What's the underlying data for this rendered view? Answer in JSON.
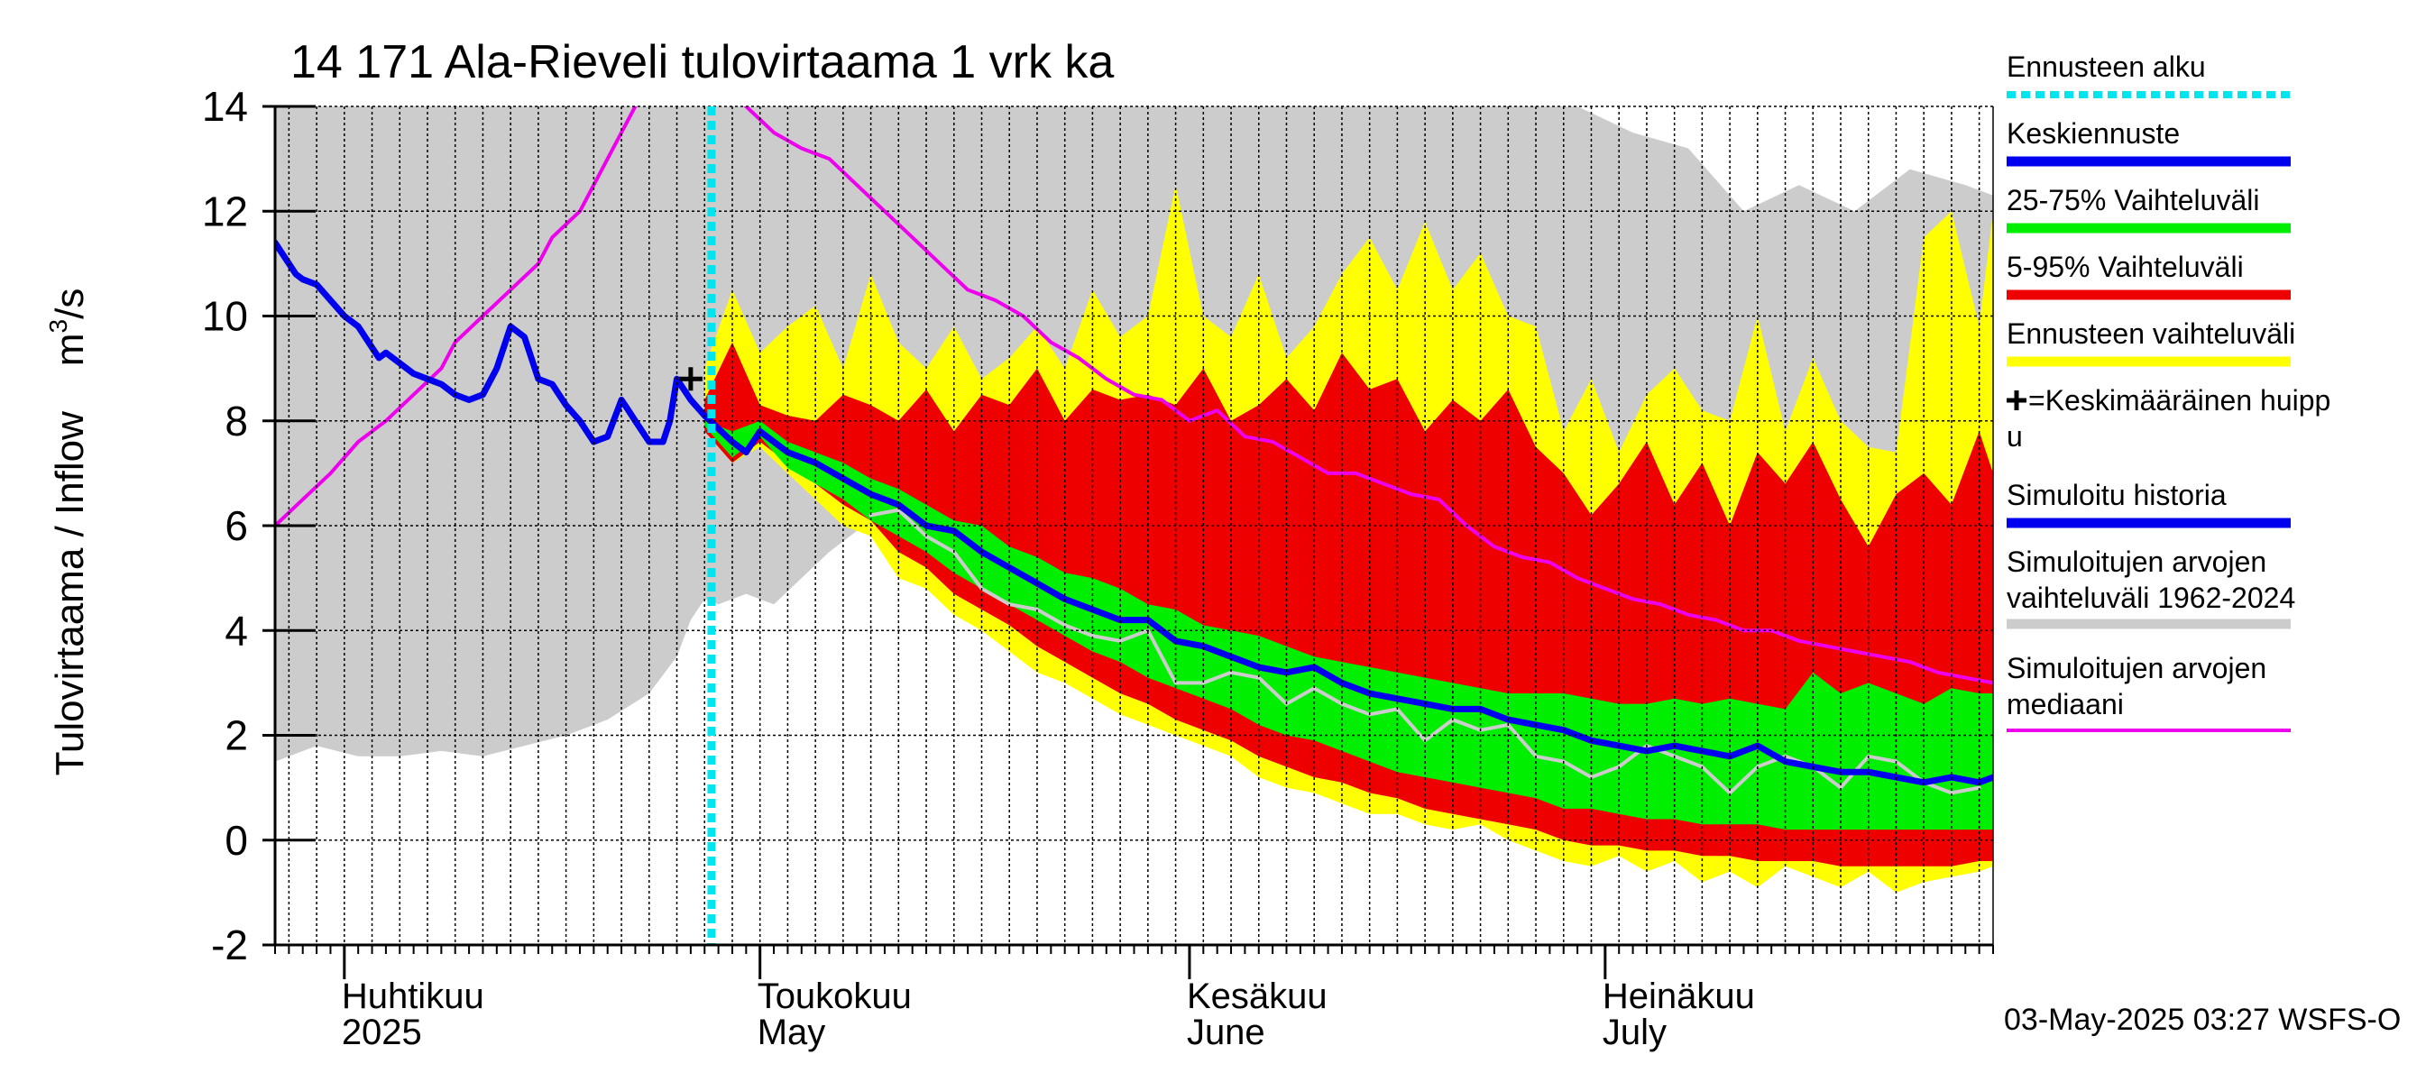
{
  "chart_data": {
    "type": "area",
    "title": "14 171 Ala-Rieveli tulovirtaama 1 vrk ka",
    "ylabel": "Tulovirtaama / Inflow",
    "yunit_base": "m",
    "yunit_sup": "3",
    "yunit_tail": "/s",
    "ylim": [
      -2,
      14
    ],
    "yticks": [
      -2,
      0,
      2,
      4,
      6,
      8,
      10,
      12,
      14
    ],
    "x_domain_days": [
      0,
      124
    ],
    "x_note": "x values are days since 2025-03-27",
    "months": [
      {
        "day": 5,
        "fi": "Huhtikuu",
        "en": "2025"
      },
      {
        "day": 35,
        "fi": "Toukokuu",
        "en": "May"
      },
      {
        "day": 66,
        "fi": "Kesäkuu",
        "en": "June"
      },
      {
        "day": 96,
        "fi": "Heinäkuu",
        "en": "July"
      }
    ],
    "forecast_start_day": 31.5,
    "mean_peak": {
      "day": 30,
      "value": 8.8
    },
    "legend": [
      {
        "label": "Ennusteen alku",
        "color": "#00e5ee",
        "style": "dotted"
      },
      {
        "label": "Keskiennuste",
        "color": "#0000ee",
        "style": "solid"
      },
      {
        "label": "25-75% Vaihteluväli",
        "color": "#00ee00",
        "style": "solid"
      },
      {
        "label": "5-95% Vaihteluväli",
        "color": "#ee0000",
        "style": "solid"
      },
      {
        "label": "Ennusteen vaihteluväli",
        "color": "#ffff00",
        "style": "solid"
      },
      {
        "label": "=Keskimääräinen huipp",
        "label2": "u",
        "marker": "+",
        "color": "#000000",
        "style": "marker"
      },
      {
        "label": "Simuloitu historia",
        "color": "#0000ee",
        "style": "solid"
      },
      {
        "label": "Simuloitujen arvojen",
        "label2": "vaihteluväli 1962-2024",
        "color": "#cccccc",
        "style": "solid"
      },
      {
        "label": "Simuloitujen arvojen",
        "label2": "mediaani",
        "color": "#ee00ee",
        "style": "solid"
      }
    ],
    "footer": "03-May-2025 03:27 WSFS-O",
    "series": [
      {
        "name": "Simuloitujen arvojen vaihteluväli 1962-2024",
        "kind": "band",
        "color": "#cccccc",
        "x": [
          0,
          3,
          6,
          9,
          12,
          15,
          18,
          21,
          24,
          27,
          29,
          30,
          31,
          32,
          34,
          36,
          38,
          40,
          42,
          46,
          50,
          54,
          58,
          62,
          66,
          70,
          74,
          78,
          82,
          86,
          90,
          94,
          98,
          102,
          106,
          110,
          114,
          118,
          122,
          124
        ],
        "low": [
          1.5,
          1.8,
          1.6,
          1.6,
          1.7,
          1.6,
          1.8,
          2.0,
          2.3,
          2.8,
          3.5,
          4.2,
          4.6,
          4.5,
          4.7,
          4.5,
          5.0,
          5.5,
          5.9,
          6.2,
          5.8,
          5.4,
          5.0,
          4.7,
          4.3,
          4.0,
          3.6,
          3.3,
          3.0,
          2.7,
          2.5,
          2.3,
          2.1,
          1.9,
          1.8,
          1.6,
          1.5,
          1.4,
          1.3,
          1.3
        ],
        "high": [
          14,
          14,
          14,
          14,
          14,
          14,
          14,
          14,
          14,
          14,
          14,
          14,
          14,
          14,
          14,
          14,
          14,
          14,
          14,
          14,
          14,
          14,
          14,
          14,
          14,
          14,
          14,
          14,
          14,
          14,
          14,
          14,
          13.5,
          13.2,
          12.0,
          12.5,
          12.0,
          12.8,
          12.5,
          12.3
        ]
      },
      {
        "name": "Ennusteen vaihteluväli",
        "kind": "band",
        "color": "#ffff00",
        "x": [
          31,
          33,
          35,
          37,
          39,
          41,
          43,
          45,
          47,
          49,
          51,
          53,
          55,
          57,
          59,
          61,
          63,
          65,
          67,
          69,
          71,
          73,
          75,
          77,
          79,
          81,
          83,
          85,
          87,
          89,
          91,
          93,
          95,
          97,
          99,
          101,
          103,
          105,
          107,
          109,
          111,
          113,
          115,
          117,
          119,
          121,
          123,
          124
        ],
        "low": [
          7.8,
          7.2,
          7.5,
          7.0,
          6.5,
          6.0,
          5.8,
          5.0,
          4.8,
          4.3,
          4.0,
          3.6,
          3.2,
          3.0,
          2.7,
          2.4,
          2.2,
          2.0,
          1.8,
          1.6,
          1.2,
          1.0,
          0.9,
          0.7,
          0.5,
          0.5,
          0.3,
          0.2,
          0.3,
          0.0,
          -0.2,
          -0.4,
          -0.5,
          -0.3,
          -0.6,
          -0.4,
          -0.8,
          -0.6,
          -0.9,
          -0.5,
          -0.7,
          -0.9,
          -0.6,
          -1.0,
          -0.8,
          -0.7,
          -0.6,
          -0.5
        ],
        "high": [
          9.0,
          10.5,
          9.3,
          9.8,
          10.2,
          9.0,
          10.8,
          9.5,
          9.0,
          9.8,
          8.8,
          9.2,
          9.8,
          9.0,
          10.5,
          9.6,
          10.0,
          12.5,
          10.0,
          9.6,
          10.8,
          9.2,
          9.8,
          10.8,
          11.5,
          10.5,
          11.8,
          10.5,
          11.2,
          10.0,
          9.8,
          7.8,
          8.8,
          7.4,
          8.5,
          9.0,
          8.2,
          8.0,
          10.0,
          7.8,
          9.2,
          8.0,
          7.5,
          7.4,
          11.5,
          12.0,
          9.8,
          12.0
        ]
      },
      {
        "name": "5-95% Vaihteluväli",
        "kind": "band",
        "color": "#ee0000",
        "x": [
          31,
          33,
          35,
          37,
          39,
          41,
          43,
          45,
          47,
          49,
          51,
          53,
          55,
          57,
          59,
          61,
          63,
          65,
          67,
          69,
          71,
          73,
          75,
          77,
          79,
          81,
          83,
          85,
          87,
          89,
          91,
          93,
          95,
          97,
          99,
          101,
          103,
          105,
          107,
          109,
          111,
          113,
          115,
          117,
          119,
          121,
          123,
          124
        ],
        "low": [
          7.8,
          7.2,
          7.6,
          7.2,
          6.8,
          6.4,
          6.1,
          5.5,
          5.2,
          4.7,
          4.4,
          4.1,
          3.7,
          3.4,
          3.1,
          2.8,
          2.6,
          2.3,
          2.1,
          1.9,
          1.6,
          1.4,
          1.2,
          1.1,
          0.9,
          0.8,
          0.6,
          0.5,
          0.4,
          0.3,
          0.2,
          0.0,
          -0.1,
          -0.1,
          -0.2,
          -0.2,
          -0.3,
          -0.3,
          -0.4,
          -0.4,
          -0.4,
          -0.5,
          -0.5,
          -0.5,
          -0.5,
          -0.5,
          -0.4,
          -0.4
        ],
        "high": [
          8.4,
          9.5,
          8.3,
          8.1,
          8.0,
          8.5,
          8.3,
          8.0,
          8.6,
          7.8,
          8.5,
          8.3,
          9.0,
          8.0,
          8.6,
          8.4,
          8.5,
          8.3,
          9.0,
          8.0,
          8.3,
          8.8,
          8.2,
          9.3,
          8.6,
          8.8,
          7.8,
          8.4,
          8.0,
          8.6,
          7.5,
          7.0,
          6.2,
          6.8,
          7.6,
          6.4,
          7.2,
          6.0,
          7.4,
          6.8,
          7.6,
          6.5,
          5.6,
          6.6,
          7.0,
          6.4,
          7.8,
          7.0
        ]
      },
      {
        "name": "25-75% Vaihteluväli",
        "kind": "band",
        "color": "#00ee00",
        "x": [
          31,
          33,
          35,
          37,
          39,
          41,
          43,
          45,
          47,
          49,
          51,
          53,
          55,
          57,
          59,
          61,
          63,
          65,
          67,
          69,
          71,
          73,
          75,
          77,
          79,
          81,
          83,
          85,
          87,
          89,
          91,
          93,
          95,
          97,
          99,
          101,
          103,
          105,
          107,
          109,
          111,
          113,
          115,
          117,
          119,
          121,
          123,
          124
        ],
        "low": [
          7.9,
          7.3,
          7.7,
          7.1,
          6.8,
          6.5,
          6.1,
          5.8,
          5.5,
          5.1,
          4.8,
          4.5,
          4.2,
          3.9,
          3.6,
          3.4,
          3.1,
          2.9,
          2.7,
          2.5,
          2.2,
          2.0,
          1.9,
          1.7,
          1.5,
          1.3,
          1.2,
          1.1,
          1.0,
          0.9,
          0.8,
          0.6,
          0.6,
          0.5,
          0.4,
          0.4,
          0.3,
          0.3,
          0.3,
          0.2,
          0.2,
          0.2,
          0.2,
          0.2,
          0.2,
          0.2,
          0.2,
          0.2
        ],
        "high": [
          8.0,
          7.8,
          8.0,
          7.6,
          7.4,
          7.2,
          6.9,
          6.7,
          6.4,
          6.1,
          6.0,
          5.6,
          5.4,
          5.1,
          5.0,
          4.8,
          4.5,
          4.4,
          4.1,
          4.0,
          3.9,
          3.7,
          3.5,
          3.4,
          3.3,
          3.2,
          3.1,
          3.0,
          2.9,
          2.8,
          2.8,
          2.8,
          2.7,
          2.6,
          2.6,
          2.7,
          2.6,
          2.7,
          2.6,
          2.5,
          3.2,
          2.8,
          3.0,
          2.8,
          2.6,
          2.9,
          2.8,
          2.8
        ]
      },
      {
        "name": "Simuloitujen arvojen mediaani",
        "kind": "line",
        "color": "#ee00ee",
        "x": [
          0,
          2,
          4,
          6,
          8,
          10,
          12,
          13,
          15,
          17,
          19,
          20,
          22,
          24,
          27,
          30,
          32,
          34,
          36,
          38,
          40,
          42,
          44,
          46,
          48,
          50,
          52,
          54,
          56,
          58,
          60,
          62,
          64,
          66,
          68,
          70,
          72,
          74,
          76,
          78,
          80,
          82,
          84,
          86,
          88,
          90,
          92,
          94,
          96,
          98,
          100,
          102,
          104,
          106,
          108,
          110,
          112,
          114,
          116,
          118,
          120,
          122,
          124
        ],
        "y": [
          6.0,
          6.5,
          7.0,
          7.6,
          8.0,
          8.5,
          9.0,
          9.5,
          10.0,
          10.5,
          11.0,
          11.5,
          12.0,
          13.0,
          14.5,
          14.9,
          14.5,
          14.0,
          13.5,
          13.2,
          13.0,
          12.5,
          12.0,
          11.5,
          11.0,
          10.5,
          10.3,
          10.0,
          9.5,
          9.2,
          8.8,
          8.5,
          8.4,
          8.0,
          8.2,
          7.7,
          7.6,
          7.3,
          7.0,
          7.0,
          6.8,
          6.6,
          6.5,
          6.0,
          5.6,
          5.4,
          5.3,
          5.0,
          4.8,
          4.6,
          4.5,
          4.3,
          4.2,
          4.0,
          4.0,
          3.8,
          3.7,
          3.6,
          3.5,
          3.4,
          3.2,
          3.1,
          3.0
        ]
      },
      {
        "name": "Simuloitu historia",
        "kind": "line",
        "color": "#0000ee",
        "width": 7,
        "x": [
          0,
          0.5,
          1,
          1.5,
          2,
          3,
          4,
          5,
          6,
          7,
          7.5,
          8,
          9,
          10,
          11,
          12,
          13,
          14,
          15,
          16,
          17,
          18,
          19,
          20,
          20.5,
          21,
          22,
          23,
          24,
          25,
          25.5,
          26,
          27,
          28,
          28.5,
          29,
          30,
          31
        ],
        "y": [
          11.4,
          11.2,
          11.0,
          10.8,
          10.7,
          10.6,
          10.3,
          10.0,
          9.8,
          9.4,
          9.2,
          9.3,
          9.1,
          8.9,
          8.8,
          8.7,
          8.5,
          8.4,
          8.5,
          9.0,
          9.8,
          9.6,
          8.8,
          8.7,
          8.5,
          8.3,
          8.0,
          7.6,
          7.7,
          8.4,
          8.2,
          8.0,
          7.6,
          7.6,
          8.0,
          8.8,
          8.4,
          8.1
        ]
      },
      {
        "name": "Simuloitu (harmaa)",
        "kind": "line",
        "color": "#cccccc",
        "width": 4,
        "x": [
          43,
          45,
          47,
          49,
          51,
          53,
          55,
          57,
          59,
          61,
          63,
          65,
          67,
          69,
          71,
          73,
          75,
          77,
          79,
          81,
          83,
          85,
          87,
          89,
          91,
          93,
          95,
          97,
          99,
          101,
          103,
          105,
          107,
          109,
          111,
          113,
          115,
          117,
          119,
          121,
          123
        ],
        "y": [
          6.2,
          6.3,
          5.8,
          5.5,
          4.8,
          4.5,
          4.4,
          4.1,
          3.9,
          3.8,
          4.0,
          3.0,
          3.0,
          3.2,
          3.1,
          2.6,
          2.9,
          2.6,
          2.4,
          2.5,
          1.9,
          2.3,
          2.1,
          2.2,
          1.6,
          1.5,
          1.2,
          1.4,
          1.8,
          1.6,
          1.4,
          0.9,
          1.4,
          1.6,
          1.4,
          1.0,
          1.6,
          1.5,
          1.1,
          0.9,
          1.0
        ]
      },
      {
        "name": "Keskiennuste",
        "kind": "line",
        "color": "#0000ee",
        "width": 7,
        "x": [
          31,
          33,
          34,
          35,
          37,
          39,
          41,
          43,
          45,
          47,
          49,
          51,
          53,
          55,
          57,
          59,
          61,
          63,
          65,
          67,
          69,
          71,
          73,
          75,
          77,
          79,
          81,
          83,
          85,
          87,
          89,
          91,
          93,
          95,
          97,
          99,
          101,
          103,
          105,
          107,
          109,
          111,
          113,
          115,
          117,
          119,
          121,
          123,
          124
        ],
        "y": [
          8.1,
          7.6,
          7.4,
          7.8,
          7.4,
          7.2,
          6.9,
          6.6,
          6.4,
          6.0,
          5.9,
          5.5,
          5.2,
          4.9,
          4.6,
          4.4,
          4.2,
          4.2,
          3.8,
          3.7,
          3.5,
          3.3,
          3.2,
          3.3,
          3.0,
          2.8,
          2.7,
          2.6,
          2.5,
          2.5,
          2.3,
          2.2,
          2.1,
          1.9,
          1.8,
          1.7,
          1.8,
          1.7,
          1.6,
          1.8,
          1.5,
          1.4,
          1.3,
          1.3,
          1.2,
          1.1,
          1.2,
          1.1,
          1.2
        ]
      }
    ]
  }
}
